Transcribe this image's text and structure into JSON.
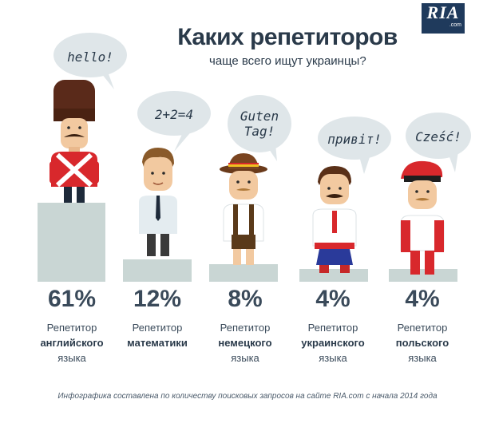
{
  "logo": {
    "word": "RIA",
    "domain": ".com"
  },
  "title": "Каких репетиторов",
  "subtitle": "чаще всего ищут украинцы?",
  "items": [
    {
      "bubble": "hello!",
      "percent": "61%",
      "label_top": "Репетитор",
      "language": "английского",
      "label_bottom": "языка",
      "share": 61
    },
    {
      "bubble": "2+2=4",
      "percent": "12%",
      "label_top": "Репетитор",
      "language": "математики",
      "label_bottom": "",
      "share": 12
    },
    {
      "bubble": "Guten Tag!",
      "percent": "8%",
      "label_top": "Репетитор",
      "language": "немецкого",
      "label_bottom": "языка",
      "share": 8
    },
    {
      "bubble": "привіт!",
      "percent": "4%",
      "label_top": "Репетитор",
      "language": "украинского",
      "label_bottom": "языка",
      "share": 4
    },
    {
      "bubble": "Cześć!",
      "percent": "4%",
      "label_top": "Репетитор",
      "language": "польского",
      "label_bottom": "языка",
      "share": 4
    }
  ],
  "colors": {
    "pedestal": "#c9d6d4",
    "bubble": "#dfe6e9",
    "text": "#2a3a4a"
  },
  "footnote": "Инфографика составлена по количеству поисковых запросов на сайте RIA.com с начала 2014 года"
}
